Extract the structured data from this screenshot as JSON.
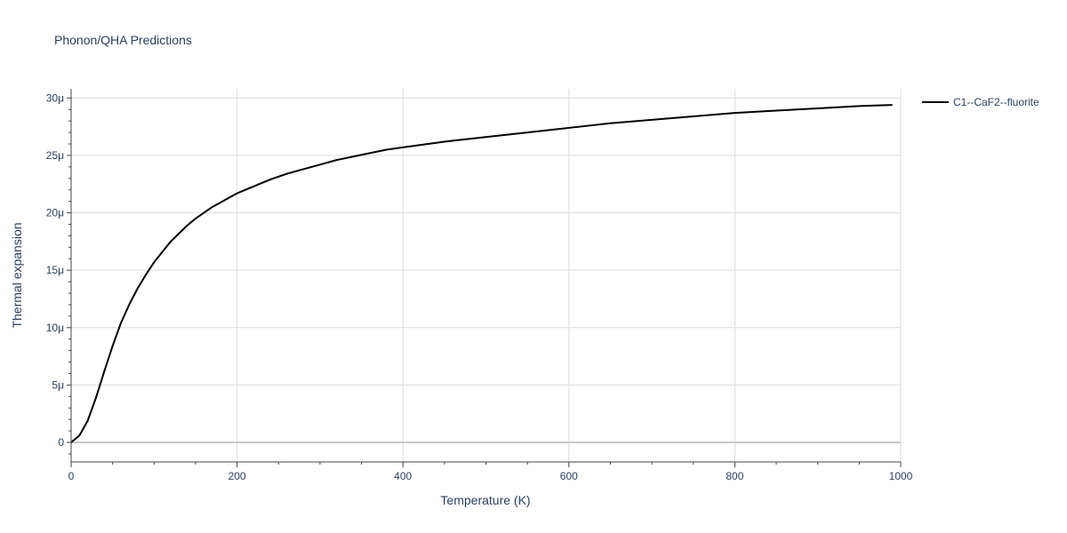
{
  "chart_data": {
    "type": "line",
    "title": "Phonon/QHA Predictions",
    "xlabel": "Temperature (K)",
    "ylabel": "Thermal expansion",
    "xlim": [
      0,
      1000
    ],
    "ylim": [
      -1.7,
      30.8
    ],
    "x_ticks": [
      0,
      200,
      400,
      600,
      800,
      1000
    ],
    "x_tick_labels": [
      "0",
      "200",
      "400",
      "600",
      "800",
      "1000"
    ],
    "y_ticks": [
      0,
      5,
      10,
      15,
      20,
      25,
      30
    ],
    "y_tick_labels": [
      "0",
      "5μ",
      "10μ",
      "15μ",
      "20μ",
      "25μ",
      "30μ"
    ],
    "y_unit_scale": "1e-6",
    "grid": true,
    "legend_position": "top-right",
    "series": [
      {
        "name": "C1--CaF2--fluorite",
        "color": "#000000",
        "x": [
          0,
          10,
          20,
          30,
          40,
          50,
          60,
          70,
          80,
          90,
          100,
          110,
          120,
          130,
          140,
          150,
          160,
          170,
          180,
          190,
          200,
          220,
          240,
          260,
          280,
          300,
          320,
          340,
          360,
          380,
          400,
          450,
          500,
          550,
          600,
          650,
          700,
          750,
          800,
          850,
          900,
          950,
          990
        ],
        "y": [
          0,
          0.6,
          1.9,
          3.9,
          6.2,
          8.4,
          10.4,
          12.0,
          13.4,
          14.6,
          15.7,
          16.6,
          17.5,
          18.2,
          18.9,
          19.5,
          20.0,
          20.5,
          20.9,
          21.3,
          21.7,
          22.3,
          22.9,
          23.4,
          23.8,
          24.2,
          24.6,
          24.9,
          25.2,
          25.5,
          25.7,
          26.2,
          26.6,
          27.0,
          27.4,
          27.8,
          28.1,
          28.4,
          28.7,
          28.9,
          29.1,
          29.3,
          29.4
        ]
      }
    ]
  }
}
